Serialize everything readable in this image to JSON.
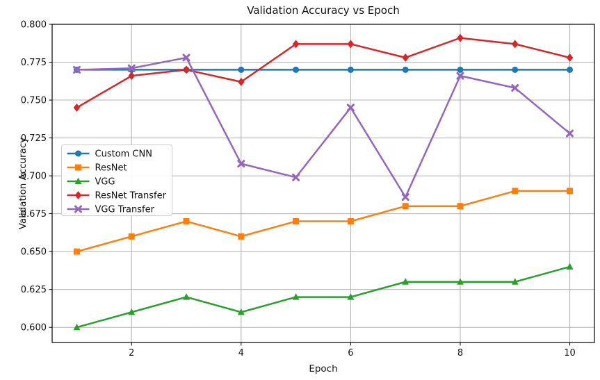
{
  "chart_data": {
    "type": "line",
    "title": "Validation Accuracy vs Epoch",
    "xlabel": "Epoch",
    "ylabel": "Validation Accuracy",
    "x": [
      1,
      2,
      3,
      4,
      5,
      6,
      7,
      8,
      9,
      10
    ],
    "series": [
      {
        "name": "Custom CNN",
        "color": "#1f77b4",
        "marker": "circle",
        "values": [
          0.77,
          0.77,
          0.77,
          0.77,
          0.77,
          0.77,
          0.77,
          0.77,
          0.77,
          0.77
        ]
      },
      {
        "name": "ResNet",
        "color": "#ff7f0e",
        "marker": "square",
        "values": [
          0.65,
          0.66,
          0.67,
          0.66,
          0.67,
          0.67,
          0.68,
          0.68,
          0.69,
          0.69
        ]
      },
      {
        "name": "VGG",
        "color": "#2ca02c",
        "marker": "triangle",
        "values": [
          0.6,
          0.61,
          0.62,
          0.61,
          0.62,
          0.62,
          0.63,
          0.63,
          0.63,
          0.64
        ]
      },
      {
        "name": "ResNet Transfer",
        "color": "#d62728",
        "marker": "diamond",
        "values": [
          0.745,
          0.766,
          0.77,
          0.762,
          0.787,
          0.787,
          0.778,
          0.791,
          0.787,
          0.778
        ]
      },
      {
        "name": "VGG Transfer",
        "color": "#9467bd",
        "marker": "x",
        "values": [
          0.77,
          0.771,
          0.778,
          0.708,
          0.699,
          0.745,
          0.686,
          0.766,
          0.758,
          0.728
        ]
      }
    ],
    "x_ticks": [
      2,
      4,
      6,
      8,
      10
    ],
    "x_tick_labels": [
      "2",
      "4",
      "6",
      "8",
      "10"
    ],
    "y_ticks": [
      0.6,
      0.625,
      0.65,
      0.675,
      0.7,
      0.725,
      0.75,
      0.775,
      0.8
    ],
    "y_tick_labels": [
      "0.600",
      "0.625",
      "0.650",
      "0.675",
      "0.700",
      "0.725",
      "0.750",
      "0.775",
      "0.800"
    ],
    "xlim": [
      0.55,
      10.45
    ],
    "ylim": [
      0.59,
      0.8
    ],
    "grid": true,
    "legend_position": "center-left",
    "colors": {
      "background": "#ffffff",
      "grid": "#b0b0b0",
      "spine": "#000000",
      "text": "#111111",
      "legend_border": "#cccccc",
      "legend_background": "#ffffff"
    }
  }
}
